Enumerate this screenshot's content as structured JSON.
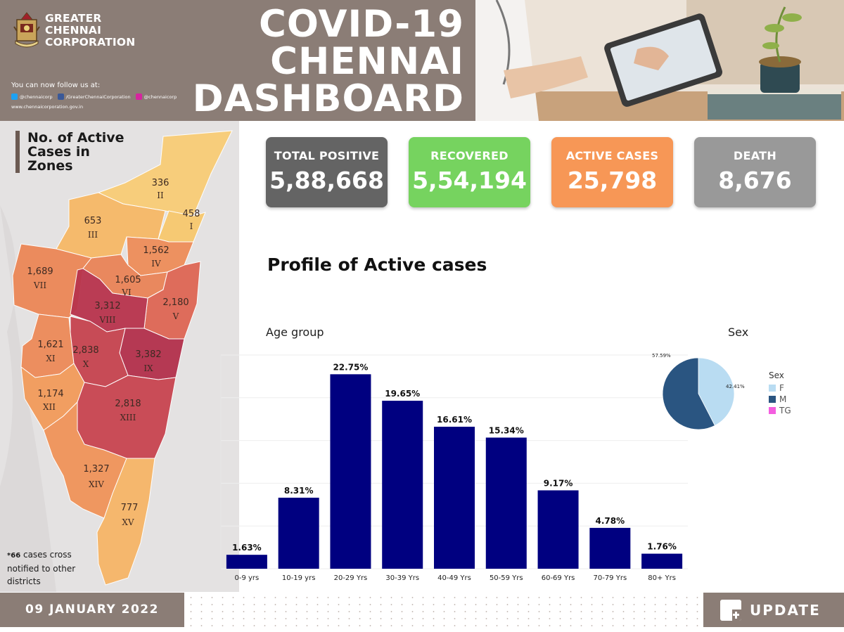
{
  "header": {
    "org_name_lines": [
      "GREATER",
      "CHENNAI",
      "CORPORATION"
    ],
    "title_lines": [
      "COVID-19",
      "CHENNAI",
      "DASHBOARD"
    ],
    "follow_label": "You can now follow us at:",
    "social": [
      {
        "icon": "twitter-icon",
        "handle": "@chennaicorp",
        "color": "#1da1f2"
      },
      {
        "icon": "facebook-icon",
        "handle": "/GreaterChennaiCorporation",
        "color": "#3b5998"
      },
      {
        "icon": "instagram-icon",
        "handle": "@chennaicorp",
        "color": "#d6249f"
      }
    ],
    "website": "www.chennaicorporation.gov.in"
  },
  "map": {
    "title_lines": [
      "No. of Active",
      "Cases in",
      "Zones"
    ],
    "zones": [
      {
        "roman": "I",
        "value": "458",
        "color": "#f8c86e"
      },
      {
        "roman": "II",
        "value": "336",
        "color": "#f9cc76"
      },
      {
        "roman": "III",
        "value": "653",
        "color": "#f6b866"
      },
      {
        "roman": "IV",
        "value": "1,562",
        "color": "#ee8d5a"
      },
      {
        "roman": "V",
        "value": "2,180",
        "color": "#de6654"
      },
      {
        "roman": "VI",
        "value": "1,605",
        "color": "#ea8457"
      },
      {
        "roman": "VII",
        "value": "1,689",
        "color": "#ec8756"
      },
      {
        "roman": "VIII",
        "value": "3,312",
        "color": "#b8344d"
      },
      {
        "roman": "IX",
        "value": "3,382",
        "color": "#b3304c"
      },
      {
        "roman": "X",
        "value": "2,838",
        "color": "#c6434f"
      },
      {
        "roman": "XI",
        "value": "1,621",
        "color": "#ed8a58"
      },
      {
        "roman": "XII",
        "value": "1,174",
        "color": "#f29b5b"
      },
      {
        "roman": "XIII",
        "value": "2,818",
        "color": "#c84550"
      },
      {
        "roman": "XIV",
        "value": "1,327",
        "color": "#f0935a"
      },
      {
        "roman": "XV",
        "value": "777",
        "color": "#f6b567"
      }
    ],
    "note_mark": "*66",
    "note_lines": [
      "cases cross",
      "notified to other",
      "districts"
    ]
  },
  "kpis": [
    {
      "id": "positive",
      "label": "TOTAL POSITIVE",
      "value": "5,88,668",
      "color": "#646464"
    },
    {
      "id": "recovered",
      "label": "RECOVERED",
      "value": "5,54,194",
      "color": "#76d35f"
    },
    {
      "id": "active",
      "label": "ACTIVE CASES",
      "value": "25,798",
      "color": "#f79756"
    },
    {
      "id": "death",
      "label": "DEATH",
      "value": "8,676",
      "color": "#999999"
    }
  ],
  "section_title": "Profile of Active cases",
  "age_group_label": "Age group",
  "sex_label": "Sex",
  "chart_data": [
    {
      "type": "bar",
      "title": "Age group",
      "categories": [
        "0-9 yrs",
        "10-19 yrs",
        "20-29 Yrs",
        "30-39 Yrs",
        "40-49 Yrs",
        "50-59 Yrs",
        "60-69 Yrs",
        "70-79 Yrs",
        "80+ Yrs"
      ],
      "values": [
        1.63,
        8.31,
        22.75,
        19.65,
        16.61,
        15.34,
        9.17,
        4.78,
        1.76
      ],
      "value_labels": [
        "1.63%",
        "8.31%",
        "22.75%",
        "19.65%",
        "16.61%",
        "15.34%",
        "9.17%",
        "4.78%",
        "1.76%"
      ],
      "ylim": [
        0,
        25
      ],
      "grid": true,
      "color": "#000080"
    },
    {
      "type": "pie",
      "title": "Sex",
      "labels": [
        "F",
        "M",
        "TG"
      ],
      "values": [
        42.41,
        57.59,
        0
      ],
      "value_labels": [
        "42.41%",
        "57.59%",
        ""
      ],
      "colors": [
        "#b9dcf2",
        "#2a5581",
        "#f45ee0"
      ],
      "legend_title": "Sex",
      "legend_position": "right"
    }
  ],
  "footer": {
    "date": "09 JANUARY 2022",
    "update_label": "UPDATE"
  }
}
